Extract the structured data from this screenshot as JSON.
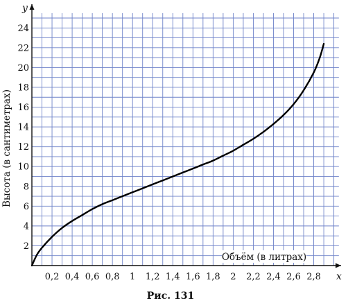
{
  "chart_data": {
    "type": "line",
    "xlabel": "Объём (в литрах)",
    "ylabel": "Высота (в сантиметрах)",
    "x_axis_letter": "x",
    "y_axis_letter": "y",
    "caption": "Рис. 131",
    "xlim": [
      0,
      3.05
    ],
    "ylim": [
      0,
      25.5
    ],
    "grid": true,
    "x_ticks": [
      {
        "value": 0.2,
        "label": "0,2"
      },
      {
        "value": 0.4,
        "label": "0,4"
      },
      {
        "value": 0.6,
        "label": "0,6"
      },
      {
        "value": 0.8,
        "label": "0,8"
      },
      {
        "value": 1.0,
        "label": "1"
      },
      {
        "value": 1.2,
        "label": "1,2"
      },
      {
        "value": 1.4,
        "label": "1,4"
      },
      {
        "value": 1.6,
        "label": "1,6"
      },
      {
        "value": 1.8,
        "label": "1,8"
      },
      {
        "value": 2.0,
        "label": "2"
      },
      {
        "value": 2.2,
        "label": "2,2"
      },
      {
        "value": 2.4,
        "label": "2,4"
      },
      {
        "value": 2.6,
        "label": "2,6"
      },
      {
        "value": 2.8,
        "label": "2,8"
      }
    ],
    "y_ticks": [
      {
        "value": 2,
        "label": "2"
      },
      {
        "value": 4,
        "label": "4"
      },
      {
        "value": 6,
        "label": "6"
      },
      {
        "value": 8,
        "label": "8"
      },
      {
        "value": 10,
        "label": "10"
      },
      {
        "value": 12,
        "label": "12"
      },
      {
        "value": 14,
        "label": "14"
      },
      {
        "value": 16,
        "label": "16"
      },
      {
        "value": 18,
        "label": "18"
      },
      {
        "value": 20,
        "label": "20"
      },
      {
        "value": 22,
        "label": "22"
      },
      {
        "value": 24,
        "label": "24"
      }
    ],
    "series": [
      {
        "color": "#000000",
        "points": [
          [
            0.0,
            0.0
          ],
          [
            0.05,
            1.1
          ],
          [
            0.1,
            1.8
          ],
          [
            0.2,
            2.9
          ],
          [
            0.3,
            3.8
          ],
          [
            0.4,
            4.5
          ],
          [
            0.5,
            5.1
          ],
          [
            0.6,
            5.7
          ],
          [
            0.7,
            6.2
          ],
          [
            0.8,
            6.6
          ],
          [
            0.9,
            7.0
          ],
          [
            1.0,
            7.4
          ],
          [
            1.1,
            7.8
          ],
          [
            1.2,
            8.2
          ],
          [
            1.3,
            8.6
          ],
          [
            1.4,
            9.0
          ],
          [
            1.5,
            9.4
          ],
          [
            1.6,
            9.8
          ],
          [
            1.7,
            10.2
          ],
          [
            1.8,
            10.6
          ],
          [
            1.9,
            11.1
          ],
          [
            2.0,
            11.6
          ],
          [
            2.1,
            12.2
          ],
          [
            2.2,
            12.8
          ],
          [
            2.3,
            13.5
          ],
          [
            2.4,
            14.3
          ],
          [
            2.5,
            15.2
          ],
          [
            2.6,
            16.3
          ],
          [
            2.7,
            17.7
          ],
          [
            2.8,
            19.5
          ],
          [
            2.86,
            21.0
          ],
          [
            2.9,
            22.4
          ]
        ]
      }
    ]
  }
}
